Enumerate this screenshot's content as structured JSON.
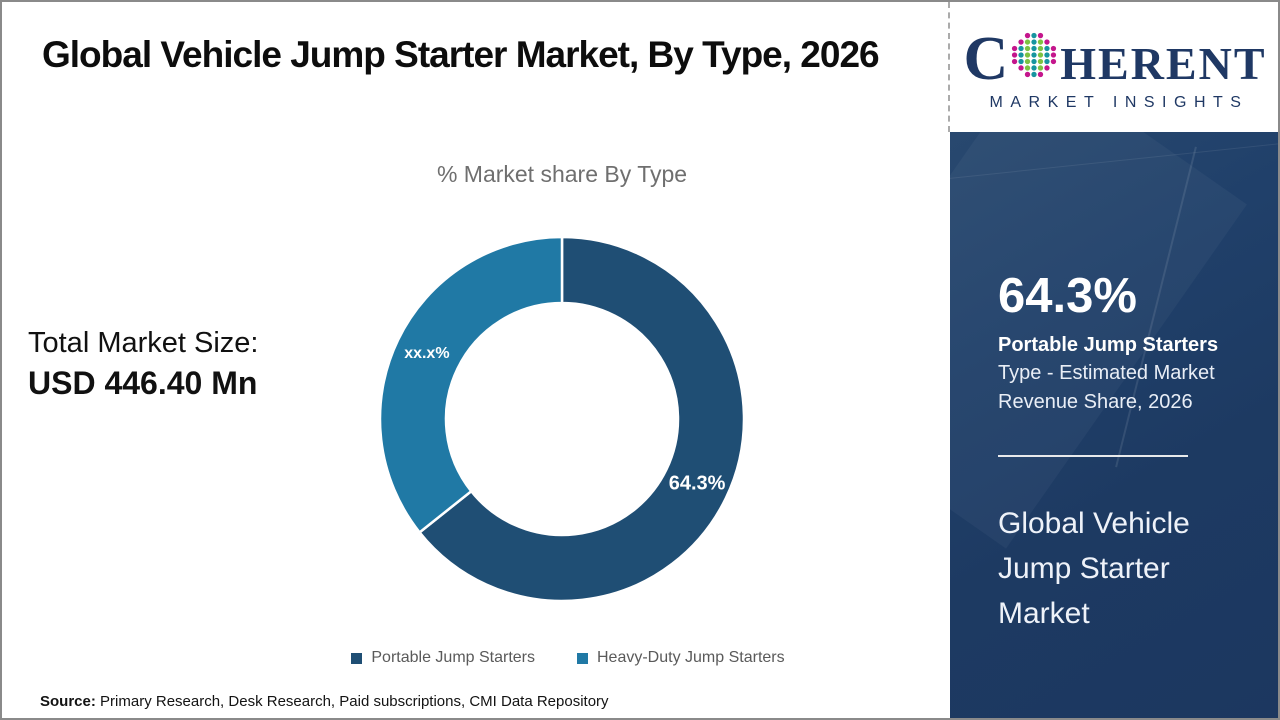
{
  "header": {
    "title": "Global Vehicle Jump Starter Market, By Type, 2026"
  },
  "total_market": {
    "label": "Total Market Size:",
    "value": "USD 446.40 Mn"
  },
  "source": {
    "label": "Source:",
    "text": " Primary Research, Desk Research, Paid subscriptions, CMI Data Repository"
  },
  "logo": {
    "word_start": "C",
    "word_end": "HERENT",
    "tagline": "MARKET INSIGHTS",
    "globe_icon": "dotted-globe",
    "brand_navy": "#1f3864",
    "brand_teal": "#1795a0",
    "brand_green": "#7dc242",
    "brand_magenta": "#c4168c"
  },
  "sidebar": {
    "stat_value": "64.3%",
    "stat_title": "Portable Jump Starters",
    "stat_desc": "Type - Estimated Market Revenue Share, 2026",
    "headline": "Global Vehicle Jump Starter Market",
    "background_color": "#1d3a62"
  },
  "chart_data": {
    "type": "pie",
    "donut": true,
    "title": "% Market share By Type",
    "categories": [
      "Portable Jump Starters",
      "Heavy-Duty Jump Starters"
    ],
    "values": [
      64.3,
      35.7
    ],
    "slice_labels": [
      "64.3%",
      "xx.x%"
    ],
    "colors": [
      "#1f4e74",
      "#2079a5"
    ],
    "start_angle_deg": 0,
    "direction": "clockwise",
    "inner_radius_ratio": 0.64,
    "legend_position": "bottom",
    "separator_color": "#ffffff"
  }
}
